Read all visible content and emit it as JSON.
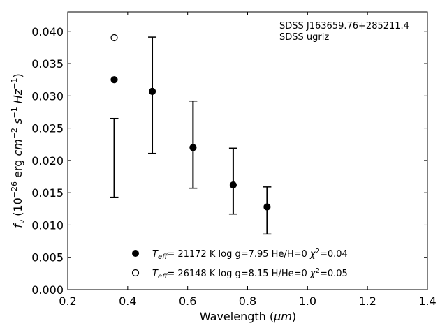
{
  "chart_data": {
    "type": "scatter",
    "title": "",
    "xlabel_text": "Wavelength (",
    "xlabel_unit": "μm",
    "xlabel_close": ")",
    "ylabel": "f_ν (10^-26 erg cm^-2 s^-1 Hz^-1)",
    "xlim": [
      0.2,
      1.4
    ],
    "ylim": [
      0.0,
      0.043
    ],
    "x_ticks": [
      "0.2",
      "0.4",
      "0.6",
      "0.8",
      "1.0",
      "1.2",
      "1.4"
    ],
    "y_ticks": [
      "0.000",
      "0.005",
      "0.010",
      "0.015",
      "0.020",
      "0.025",
      "0.030",
      "0.035",
      "0.040"
    ],
    "annotations": [
      "SDSS J163659.76+285211.4",
      "SDSS ugriz"
    ],
    "errorbars": [
      {
        "x": 0.355,
        "low": 0.0143,
        "high": 0.0265
      },
      {
        "x": 0.482,
        "low": 0.0211,
        "high": 0.0391
      },
      {
        "x": 0.618,
        "low": 0.0157,
        "high": 0.0292
      },
      {
        "x": 0.752,
        "low": 0.0117,
        "high": 0.0219
      },
      {
        "x": 0.865,
        "low": 0.0086,
        "high": 0.0159
      }
    ],
    "series": [
      {
        "marker": "filled",
        "legend_label": "T_eff= 21172 K  log g=7.95  He/H=0  χ²=0.04",
        "points": [
          {
            "x": 0.355,
            "y": 0.0325
          },
          {
            "x": 0.482,
            "y": 0.0307
          },
          {
            "x": 0.618,
            "y": 0.022
          },
          {
            "x": 0.752,
            "y": 0.0162
          },
          {
            "x": 0.865,
            "y": 0.0128
          }
        ]
      },
      {
        "marker": "open",
        "legend_label": "T_eff= 26148 K  log g=8.15  H/He=0  χ²=0.05",
        "points": [
          {
            "x": 0.355,
            "y": 0.039
          }
        ]
      }
    ],
    "legend_position": "lower-center",
    "grid": false
  }
}
